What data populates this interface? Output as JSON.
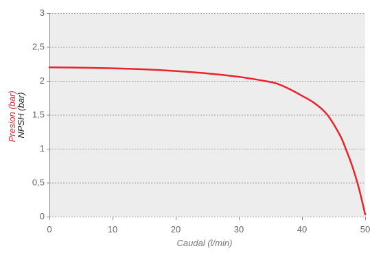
{
  "chart_data": {
    "type": "line",
    "title": "",
    "xlabel": "Caudal (l/min)",
    "ylabel_lines": [
      {
        "text": "Presion (bar)",
        "color": "#e8232a"
      },
      {
        "text": "NPSH (bar)",
        "color": "#222222"
      }
    ],
    "xlim": [
      0,
      50
    ],
    "ylim": [
      0,
      3
    ],
    "x_ticks": [
      0,
      10,
      20,
      30,
      40,
      50
    ],
    "x_tick_labels": [
      "0",
      "10",
      "20",
      "30",
      "40",
      "50"
    ],
    "y_ticks": [
      0,
      0.5,
      1,
      1.5,
      2,
      2.5,
      3
    ],
    "y_tick_labels": [
      "0",
      "0,5",
      "1",
      "1,5",
      "2",
      "2,5",
      "3"
    ],
    "grid": "horizontal dashed",
    "colors": {
      "plot_background": "#ededed",
      "grid": "#9a9a9a",
      "tick_labels": "#666666",
      "axis_label": "#777777"
    },
    "series": [
      {
        "color": "#e8232a",
        "x": [
          0,
          5,
          10,
          15,
          20,
          25,
          30,
          34,
          36,
          38,
          40,
          42,
          44,
          46,
          47,
          48,
          49,
          50
        ],
        "y": [
          2.2,
          2.195,
          2.185,
          2.17,
          2.145,
          2.11,
          2.06,
          2.0,
          1.96,
          1.88,
          1.78,
          1.67,
          1.5,
          1.2,
          0.98,
          0.73,
          0.42,
          0.03
        ]
      }
    ]
  }
}
